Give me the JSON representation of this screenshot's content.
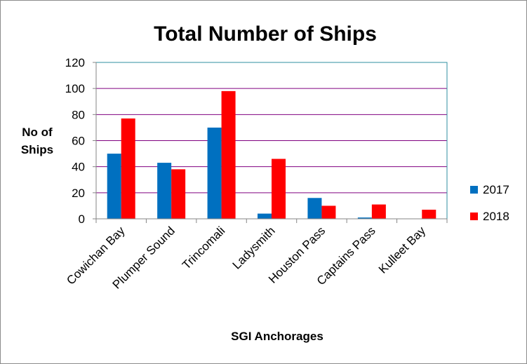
{
  "chart_data": {
    "type": "bar",
    "title": "Total Number of Ships",
    "xlabel": "SGI Anchorages",
    "ylabel_lines": [
      "No of",
      "Ships"
    ],
    "categories": [
      "Cowichan Bay",
      "Plumper Sound",
      "Trincomali",
      "Ladysmith",
      "Houston Pass",
      "Captains Pass",
      "Kulleet Bay"
    ],
    "series": [
      {
        "name": "2017",
        "color": "#0070c0",
        "values": [
          50,
          43,
          70,
          4,
          16,
          1,
          0
        ]
      },
      {
        "name": "2018",
        "color": "#ff0000",
        "values": [
          77,
          38,
          98,
          46,
          10,
          11,
          7
        ]
      }
    ],
    "ylim": [
      0,
      120
    ],
    "yticks": [
      0,
      20,
      40,
      60,
      80,
      100,
      120
    ],
    "grid": true,
    "gridline_color": "#800080",
    "plot_border_color": "#2f8fa0",
    "legend_position": "right"
  }
}
